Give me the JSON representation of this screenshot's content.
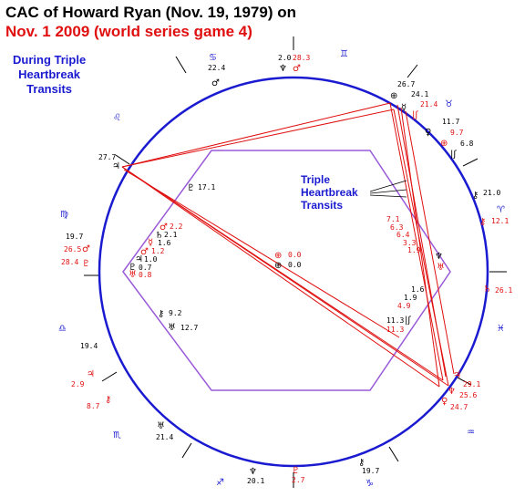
{
  "title_line1": "CAC of Howard Ryan (Nov. 19, 1979) on",
  "title_line2": "Nov. 1 2009 (world series game 4)",
  "side_note": [
    "During Triple",
    "Heartbreak",
    "Transits"
  ],
  "transit_note": [
    "Triple",
    "Heartbreak",
    "Transits"
  ],
  "colors": {
    "circle": "#1a1ad0",
    "hexagon": "#9a5ad8",
    "transit": "#e01010",
    "natal": "#000000"
  },
  "zodiac_signs": [
    {
      "name": "cancer",
      "glyph": "♋"
    },
    {
      "name": "gemini",
      "glyph": "♊"
    },
    {
      "name": "taurus",
      "glyph": "♉"
    },
    {
      "name": "aries",
      "glyph": "♈"
    },
    {
      "name": "pisces",
      "glyph": "♓"
    },
    {
      "name": "aquarius",
      "glyph": "♒"
    },
    {
      "name": "capricorn",
      "glyph": "♑"
    },
    {
      "name": "sagittarius",
      "glyph": "♐"
    },
    {
      "name": "scorpio",
      "glyph": "♏"
    },
    {
      "name": "libra",
      "glyph": "♎"
    },
    {
      "name": "virgo",
      "glyph": "♍"
    },
    {
      "name": "leo",
      "glyph": "♌"
    }
  ],
  "outer_labels": [
    {
      "text": "22.4",
      "color": "natal"
    },
    {
      "text": "♂",
      "color": "natal"
    },
    {
      "text": "2.0",
      "color": "natal"
    },
    {
      "text": "♆",
      "color": "natal"
    },
    {
      "text": "28.3",
      "color": "transit"
    },
    {
      "text": "♂",
      "color": "transit"
    },
    {
      "text": "26.7",
      "color": "natal"
    },
    {
      "text": "24.1",
      "color": "natal"
    },
    {
      "text": "21.4",
      "color": "transit"
    },
    {
      "text": "11.7",
      "color": "natal"
    },
    {
      "text": "9.7",
      "color": "transit"
    },
    {
      "text": "6.8",
      "color": "natal"
    },
    {
      "text": "21.0",
      "color": "natal"
    },
    {
      "text": "12.1",
      "color": "transit"
    },
    {
      "text": "26.1",
      "color": "transit"
    },
    {
      "text": "29.1",
      "color": "transit"
    },
    {
      "text": "25.6",
      "color": "transit"
    },
    {
      "text": "24.7",
      "color": "transit"
    },
    {
      "text": "19.7",
      "color": "natal"
    },
    {
      "text": "2.7",
      "color": "transit"
    },
    {
      "text": "20.1",
      "color": "natal"
    },
    {
      "text": "21.4",
      "color": "natal"
    },
    {
      "text": "8.7",
      "color": "transit"
    },
    {
      "text": "2.9",
      "color": "transit"
    },
    {
      "text": "19.4",
      "color": "natal"
    },
    {
      "text": "19.7",
      "color": "natal"
    },
    {
      "text": "26.5",
      "color": "transit"
    },
    {
      "text": "28.4",
      "color": "transit"
    },
    {
      "text": "27.7",
      "color": "natal"
    }
  ],
  "inner_labels": [
    {
      "text": "17.1",
      "color": "natal"
    },
    {
      "text": "2.2",
      "color": "transit"
    },
    {
      "text": "2.1",
      "color": "natal"
    },
    {
      "text": "1.6",
      "color": "natal"
    },
    {
      "text": "1.2",
      "color": "transit"
    },
    {
      "text": "1.0",
      "color": "natal"
    },
    {
      "text": "0.7",
      "color": "natal"
    },
    {
      "text": "0.8",
      "color": "transit"
    },
    {
      "text": "0.0",
      "color": "transit"
    },
    {
      "text": "0.0",
      "color": "natal"
    },
    {
      "text": "9.2",
      "color": "natal"
    },
    {
      "text": "12.7",
      "color": "natal"
    },
    {
      "text": "7.1",
      "color": "transit"
    },
    {
      "text": "6.3",
      "color": "transit"
    },
    {
      "text": "6.4",
      "color": "transit"
    },
    {
      "text": "3.3",
      "color": "transit"
    },
    {
      "text": "1.9",
      "color": "transit"
    },
    {
      "text": "1.6",
      "color": "natal"
    },
    {
      "text": "1.9",
      "color": "natal"
    },
    {
      "text": "4.9",
      "color": "transit"
    },
    {
      "text": "11.3",
      "color": "natal"
    },
    {
      "text": "11.3",
      "color": "transit"
    }
  ]
}
